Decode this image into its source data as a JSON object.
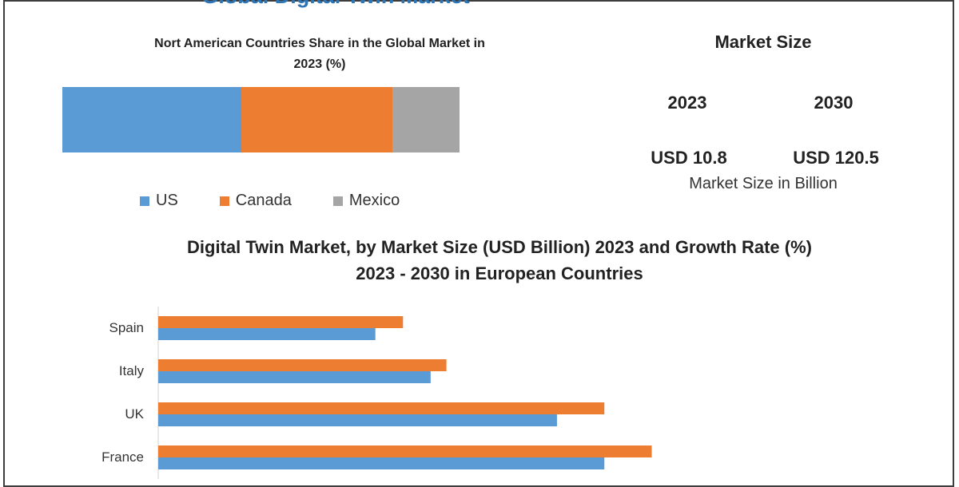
{
  "main_title": "Global Digital Twin Market",
  "colors": {
    "blue": "#5b9bd5",
    "orange": "#ed7d31",
    "gray": "#a5a5a5",
    "title_blue": "#2e75b6"
  },
  "market_size": {
    "title": "Market Size",
    "year_start": "2023",
    "year_end": "2030",
    "value_start": "USD 10.8",
    "value_end": "USD 120.5",
    "caption": "Market Size in Billion"
  },
  "chart_data": [
    {
      "type": "bar",
      "orientation": "horizontal-stacked",
      "title_line1": "Nort American Countries Share in the Global Market in",
      "title_line2": "2023  (%)",
      "categories": [
        "US",
        "Canada",
        "Mexico"
      ],
      "values": [
        45,
        38,
        17
      ],
      "legend": "bottom"
    },
    {
      "type": "bar",
      "orientation": "horizontal-grouped",
      "title_line1": "Digital Twin Market, by Market Size (USD Billion) 2023 and Growth Rate (%)",
      "title_line2": "2023 - 2030 in European Countries",
      "categories": [
        "Spain",
        "Italy",
        "UK",
        "France"
      ],
      "series": [
        {
          "values": [
            62,
            73,
            113,
            125
          ],
          "color": "#ed7d31"
        },
        {
          "values": [
            55,
            69,
            101,
            113
          ],
          "color": "#5b9bd5"
        }
      ],
      "xlim": [
        0,
        250
      ]
    }
  ]
}
